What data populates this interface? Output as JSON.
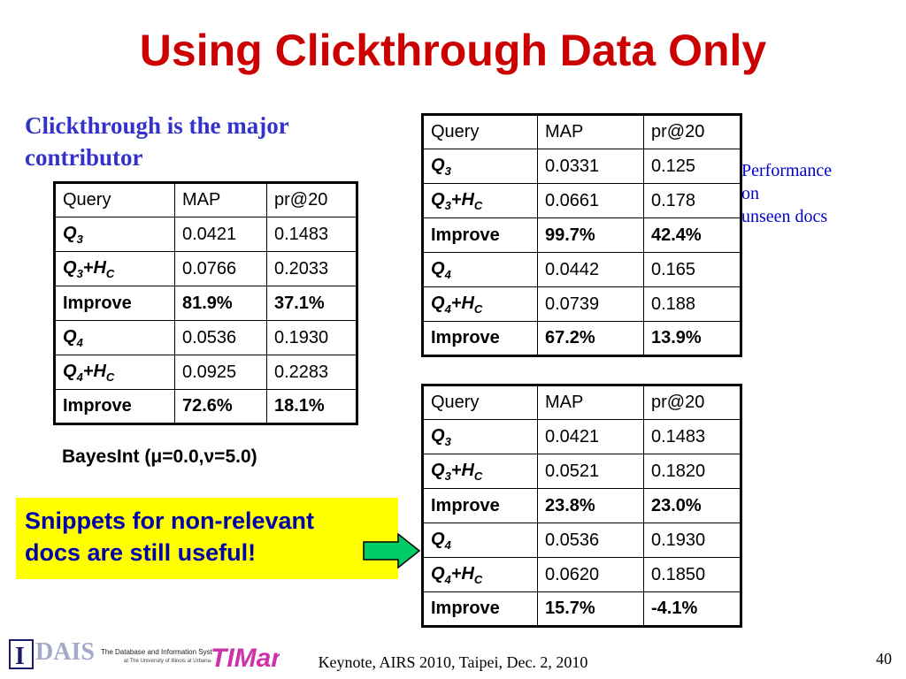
{
  "slide": {
    "title": "Using  Clickthrough Data Only",
    "subtitle": "Clickthrough is the major contributor",
    "side_note_lines": [
      "Performance",
      "on",
      "unseen docs"
    ],
    "bayes_note": "BayesInt (μ=0.0,ν=5.0)",
    "callout_lines": [
      "Snippets for non-relevant",
      "docs are still useful!"
    ],
    "footer": "Keynote, AIRS 2010, Taipei, Dec. 2, 2010",
    "page_number": "40",
    "logo_left_text": "DAIS",
    "logo_left_caption": "The Database and Information Systems Laboratory",
    "logo_right_text": "TIMan",
    "colors": {
      "title": "#cc0000",
      "subtitle": "#3333cc",
      "note": "#0000cc",
      "callout_bg": "#ffff00",
      "arrow": "#00cc66"
    }
  },
  "chart_data": {
    "type": "table",
    "tables": [
      {
        "headers": [
          "Query",
          "MAP",
          "pr@20"
        ],
        "rows": [
          [
            "Q3",
            "0.0421",
            "0.1483"
          ],
          [
            "Q3+HC",
            "0.0766",
            "0.2033"
          ],
          [
            "Improve",
            "81.9%",
            "37.1%"
          ],
          [
            "Q4",
            "0.0536",
            "0.1930"
          ],
          [
            "Q4+HC",
            "0.0925",
            "0.2283"
          ],
          [
            "Improve",
            "72.6%",
            "18.1%"
          ]
        ]
      },
      {
        "headers": [
          "Query",
          "MAP",
          "pr@20"
        ],
        "rows": [
          [
            "Q3",
            "0.0331",
            "0.125"
          ],
          [
            "Q3+HC",
            "0.0661",
            "0.178"
          ],
          [
            "Improve",
            "99.7%",
            "42.4%"
          ],
          [
            "Q4",
            "0.0442",
            "0.165"
          ],
          [
            "Q4+HC",
            "0.0739",
            "0.188"
          ],
          [
            "Improve",
            "67.2%",
            "13.9%"
          ]
        ]
      },
      {
        "headers": [
          "Query",
          "MAP",
          "pr@20"
        ],
        "rows": [
          [
            "Q3",
            "0.0421",
            "0.1483"
          ],
          [
            "Q3+HC",
            "0.0521",
            "0.1820"
          ],
          [
            "Improve",
            "23.8%",
            "23.0%"
          ],
          [
            "Q4",
            "0.0536",
            "0.1930"
          ],
          [
            "Q4+HC",
            "0.0620",
            "0.1850"
          ],
          [
            "Improve",
            "15.7%",
            "-4.1%"
          ]
        ]
      }
    ]
  }
}
